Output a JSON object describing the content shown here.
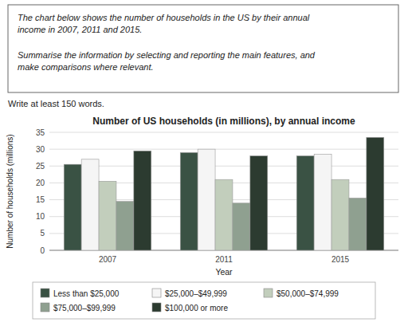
{
  "chart_data": {
    "type": "bar",
    "title": "Number of US households (in millions), by annual income",
    "xlabel": "Year",
    "ylabel": "Number of households (millions)",
    "categories": [
      "2007",
      "2011",
      "2015"
    ],
    "series": [
      {
        "name": "Less than $25,000",
        "color": "#3a5244",
        "values": [
          25.5,
          29.0,
          28.0
        ]
      },
      {
        "name": "$25,000–$49,999",
        "color": "#f5f5f5",
        "values": [
          27.0,
          30.0,
          28.5
        ]
      },
      {
        "name": "$50,000–$74,999",
        "color": "#c2cebc",
        "values": [
          20.5,
          21.0,
          21.0
        ]
      },
      {
        "name": "$75,000–$99,999",
        "color": "#8fa090",
        "values": [
          14.5,
          14.0,
          15.5
        ]
      },
      {
        "name": "$100,000 or more",
        "color": "#2c3b30",
        "values": [
          29.5,
          28.0,
          33.5
        ]
      }
    ],
    "ylim": [
      0,
      35
    ],
    "yticks": [
      0,
      5,
      10,
      15,
      20,
      25,
      30,
      35
    ],
    "grid": true,
    "legend": "bottom",
    "annotations": [
      "The chart below shows the number of households in the US by their annual",
      "income in 2007, 2011 and 2015.",
      "Summarise the information by selecting and reporting the main features, and",
      "make comparisons where relevant.",
      "Write at least 150 words."
    ]
  }
}
